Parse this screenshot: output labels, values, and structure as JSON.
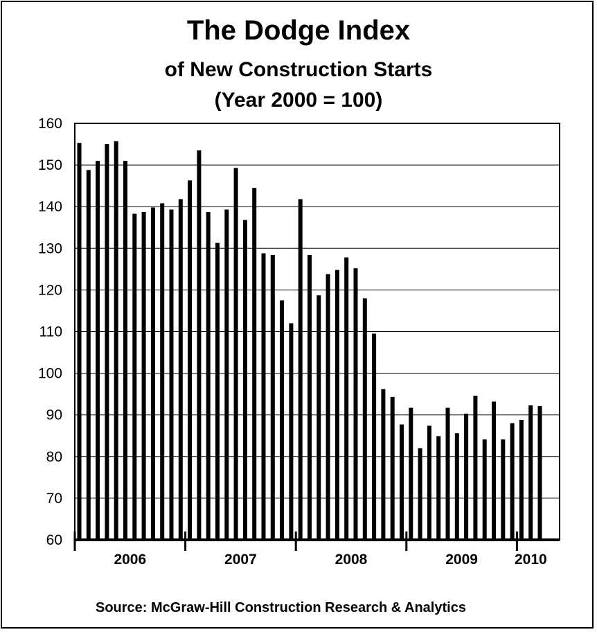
{
  "chart_data": {
    "type": "bar",
    "title": "The Dodge Index",
    "subtitle": "of New Construction Starts",
    "subtitle2": "(Year 2000 = 100)",
    "source": "Source:  McGraw-Hill Construction Research & Analytics",
    "ylim": [
      60,
      160
    ],
    "yticks": [
      60,
      70,
      80,
      90,
      100,
      110,
      120,
      130,
      140,
      150,
      160
    ],
    "grid": true,
    "year_labels": [
      "2006",
      "2007",
      "2008",
      "2009",
      "2010"
    ],
    "values": [
      155.3,
      148.8,
      151.0,
      155.0,
      155.7,
      151.0,
      138.3,
      138.7,
      139.8,
      140.8,
      139.3,
      141.8,
      146.3,
      153.5,
      138.7,
      131.3,
      139.3,
      149.3,
      136.8,
      144.5,
      128.8,
      128.4,
      117.5,
      112.0,
      141.8,
      128.4,
      118.7,
      123.8,
      124.8,
      127.8,
      125.2,
      118.0,
      109.5,
      96.2,
      94.3,
      87.7,
      91.7,
      82.0,
      87.4,
      84.9,
      91.7,
      85.6,
      90.3,
      94.6,
      84.1,
      93.2,
      84.1,
      88.0,
      88.8,
      92.3,
      92.1
    ],
    "bar_color": "#000000"
  }
}
